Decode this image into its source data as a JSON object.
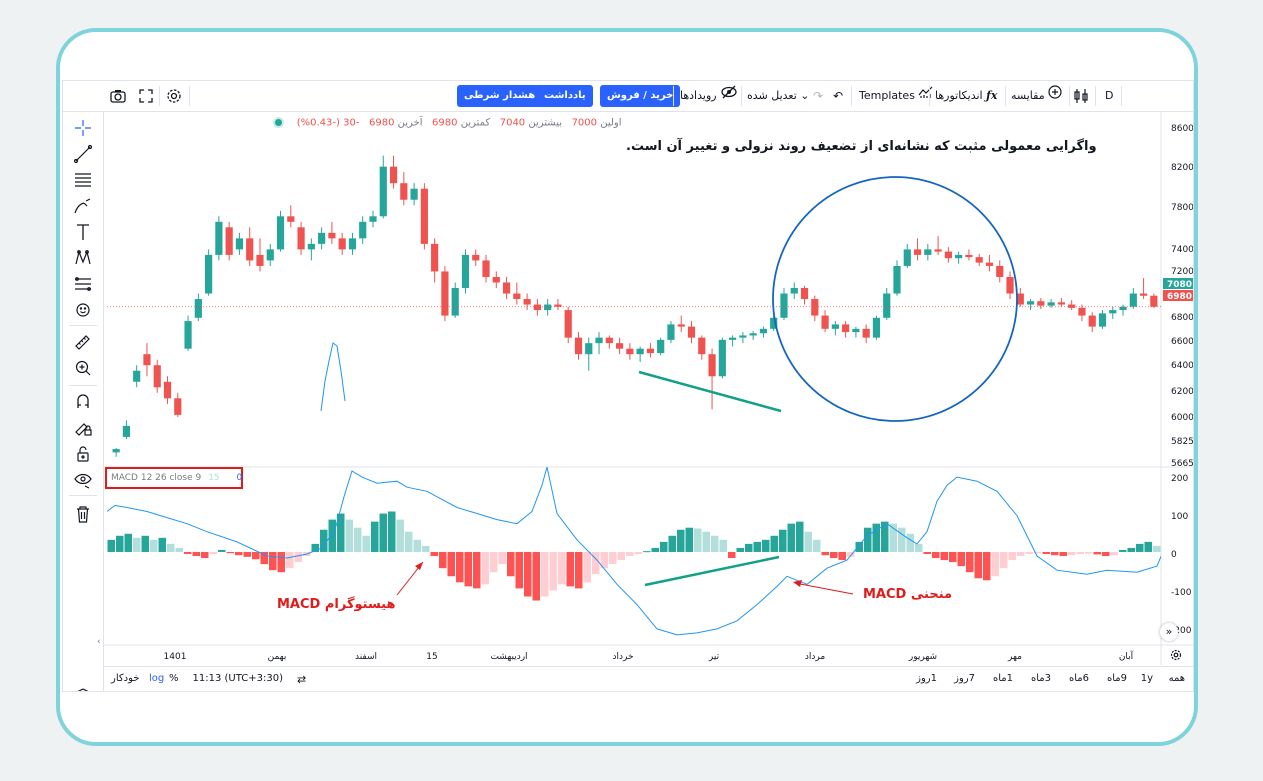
{
  "toolbar": {
    "interval": "D",
    "compare": "مقایسه",
    "indicators": "اندیکاتورها",
    "templates": "Templates",
    "adjusted": "تعدیل شده",
    "events": "رویدادها",
    "buy_sell": "خرید / فروش",
    "note": "یادداشت",
    "alert": "هشدار شرطی"
  },
  "legend": {
    "change": "-30 (-0.43%)",
    "last_value": "6980",
    "last_label": "آخرین",
    "low_value": "6980",
    "low_label": "کمترین",
    "high_value": "7040",
    "high_label": "بیشترین",
    "open_value": "7000",
    "open_label": "اولین"
  },
  "macd_label": {
    "name": "MACD 12 26 close 9",
    "v1": "15",
    "v2": "0"
  },
  "price_axis": [
    "8600",
    "8200",
    "7800",
    "7400",
    "7200",
    "6800",
    "6600",
    "6400",
    "6200",
    "6000",
    "5825",
    "5665"
  ],
  "price_tags": {
    "blue": "7080",
    "red": "6980"
  },
  "macd_axis": [
    "200",
    "100",
    "0",
    "-100",
    "-200"
  ],
  "time_axis": [
    {
      "label": "1401",
      "x": 112
    },
    {
      "label": "بهمن",
      "x": 214
    },
    {
      "label": "اسفند",
      "x": 303
    },
    {
      "label": "15",
      "x": 369
    },
    {
      "label": "اردیبهشت",
      "x": 446
    },
    {
      "label": "خرداد",
      "x": 560
    },
    {
      "label": "تیر",
      "x": 651
    },
    {
      "label": "مرداد",
      "x": 752
    },
    {
      "label": "شهریور",
      "x": 860
    },
    {
      "label": "مهر",
      "x": 952
    },
    {
      "label": "آبان",
      "x": 1063
    }
  ],
  "bottom": {
    "ranges": [
      "همه",
      "1y",
      "9ماه",
      "6ماه",
      "3ماه",
      "1ماه",
      "7روز",
      "1روز"
    ],
    "time": "11:13 (UTC+3:30)",
    "percent": "%",
    "log": "log",
    "auto": "خودکار"
  },
  "annotations": {
    "headline": "واگرایی معمولی مثبت که نشانه‌ای از تضعیف روند نزولی و تغییر آن است.",
    "histogram": "هیستوگرام MACD",
    "curve": "منحنی MACD"
  },
  "colors": {
    "up": "#26a69a",
    "down": "#ef5350",
    "accent": "#2962ff",
    "annotation": "#e01b1b",
    "circle": "#1565c0",
    "divergence": "#12a087"
  },
  "chart_data": {
    "type": "candlestick",
    "title": "",
    "price_ylim": [
      5600,
      8700
    ],
    "candles": [
      [
        5660,
        5700,
        5620,
        5690
      ],
      [
        5800,
        5950,
        5780,
        5900
      ],
      [
        6300,
        6450,
        6250,
        6400
      ],
      [
        6550,
        6650,
        6350,
        6450
      ],
      [
        6450,
        6500,
        6200,
        6250
      ],
      [
        6300,
        6350,
        6100,
        6150
      ],
      [
        6150,
        6200,
        5980,
        6000
      ],
      [
        6600,
        6900,
        6580,
        6850
      ],
      [
        6880,
        7100,
        6850,
        7050
      ],
      [
        7100,
        7500,
        7080,
        7450
      ],
      [
        7450,
        7800,
        7400,
        7750
      ],
      [
        7700,
        7750,
        7400,
        7450
      ],
      [
        7500,
        7650,
        7450,
        7600
      ],
      [
        7600,
        7700,
        7350,
        7400
      ],
      [
        7450,
        7600,
        7300,
        7350
      ],
      [
        7400,
        7550,
        7350,
        7500
      ],
      [
        7500,
        7850,
        7480,
        7800
      ],
      [
        7800,
        7900,
        7700,
        7750
      ],
      [
        7700,
        7750,
        7450,
        7500
      ],
      [
        7500,
        7600,
        7400,
        7550
      ],
      [
        7550,
        7700,
        7500,
        7650
      ],
      [
        7650,
        7750,
        7550,
        7600
      ],
      [
        7600,
        7650,
        7450,
        7500
      ],
      [
        7500,
        7650,
        7450,
        7600
      ],
      [
        7600,
        7800,
        7550,
        7750
      ],
      [
        7750,
        7850,
        7700,
        7800
      ],
      [
        7800,
        8350,
        7780,
        8250
      ],
      [
        8250,
        8350,
        8050,
        8100
      ],
      [
        8100,
        8200,
        7900,
        7950
      ],
      [
        7950,
        8100,
        7900,
        8050
      ],
      [
        8050,
        8100,
        7500,
        7550
      ],
      [
        7550,
        7600,
        7200,
        7300
      ],
      [
        7300,
        7350,
        6850,
        6900
      ],
      [
        6900,
        7200,
        6880,
        7150
      ],
      [
        7150,
        7500,
        7100,
        7450
      ],
      [
        7450,
        7500,
        7350,
        7400
      ],
      [
        7400,
        7450,
        7200,
        7250
      ],
      [
        7250,
        7300,
        7150,
        7200
      ],
      [
        7200,
        7250,
        7050,
        7100
      ],
      [
        7100,
        7200,
        7000,
        7050
      ],
      [
        7050,
        7100,
        6950,
        7000
      ],
      [
        7000,
        7050,
        6900,
        6950
      ],
      [
        6950,
        7050,
        6900,
        7000
      ],
      [
        7000,
        7050,
        6950,
        6980
      ],
      [
        6950,
        6980,
        6650,
        6700
      ],
      [
        6700,
        6750,
        6500,
        6550
      ],
      [
        6550,
        6700,
        6400,
        6650
      ],
      [
        6650,
        6750,
        6550,
        6700
      ],
      [
        6700,
        6720,
        6600,
        6650
      ],
      [
        6650,
        6700,
        6550,
        6600
      ],
      [
        6600,
        6650,
        6500,
        6550
      ],
      [
        6550,
        6620,
        6480,
        6600
      ],
      [
        6600,
        6650,
        6520,
        6560
      ],
      [
        6560,
        6700,
        6540,
        6680
      ],
      [
        6680,
        6850,
        6650,
        6820
      ],
      [
        6820,
        6900,
        6750,
        6800
      ],
      [
        6800,
        6850,
        6650,
        6700
      ],
      [
        6700,
        6720,
        6500,
        6550
      ],
      [
        6550,
        6600,
        6050,
        6350
      ],
      [
        6350,
        6700,
        6330,
        6680
      ],
      [
        6680,
        6720,
        6620,
        6700
      ],
      [
        6700,
        6750,
        6650,
        6720
      ],
      [
        6720,
        6760,
        6680,
        6740
      ],
      [
        6740,
        6800,
        6700,
        6780
      ],
      [
        6780,
        6900,
        6760,
        6880
      ],
      [
        6880,
        7150,
        6860,
        7100
      ],
      [
        7100,
        7200,
        7050,
        7150
      ],
      [
        7150,
        7170,
        7000,
        7050
      ],
      [
        7050,
        7080,
        6850,
        6900
      ],
      [
        6900,
        6950,
        6750,
        6780
      ],
      [
        6780,
        6850,
        6720,
        6820
      ],
      [
        6820,
        6850,
        6700,
        6750
      ],
      [
        6750,
        6800,
        6700,
        6780
      ],
      [
        6780,
        6820,
        6650,
        6700
      ],
      [
        6700,
        6900,
        6680,
        6880
      ],
      [
        6880,
        7150,
        6860,
        7100
      ],
      [
        7100,
        7400,
        7080,
        7350
      ],
      [
        7350,
        7550,
        7330,
        7500
      ],
      [
        7500,
        7600,
        7400,
        7450
      ],
      [
        7450,
        7550,
        7400,
        7500
      ],
      [
        7500,
        7620,
        7450,
        7480
      ],
      [
        7480,
        7520,
        7380,
        7420
      ],
      [
        7420,
        7480,
        7370,
        7450
      ],
      [
        7450,
        7500,
        7400,
        7430
      ],
      [
        7430,
        7460,
        7350,
        7380
      ],
      [
        7380,
        7450,
        7300,
        7350
      ],
      [
        7350,
        7400,
        7200,
        7250
      ],
      [
        7250,
        7300,
        7050,
        7100
      ],
      [
        7100,
        7150,
        6980,
        7000
      ],
      [
        7000,
        7050,
        6950,
        7030
      ],
      [
        7030,
        7060,
        6960,
        6990
      ],
      [
        6990,
        7050,
        6970,
        7020
      ],
      [
        7020,
        7060,
        6980,
        7000
      ],
      [
        7000,
        7040,
        6950,
        6970
      ],
      [
        6970,
        7000,
        6850,
        6900
      ],
      [
        6900,
        6930,
        6750,
        6800
      ],
      [
        6800,
        6950,
        6780,
        6920
      ],
      [
        6920,
        6980,
        6870,
        6950
      ],
      [
        6950,
        7000,
        6900,
        6980
      ],
      [
        6980,
        7150,
        6960,
        7100
      ],
      [
        7100,
        7240,
        7050,
        7080
      ],
      [
        7080,
        7100,
        6970,
        6980
      ]
    ],
    "macd_ylim": [
      -220,
      210
    ],
    "histogram": [
      30,
      40,
      45,
      35,
      40,
      30,
      35,
      20,
      10,
      -5,
      -10,
      -15,
      -5,
      5,
      -3,
      -8,
      -12,
      -18,
      -30,
      -45,
      -50,
      -40,
      -25,
      -10,
      20,
      55,
      80,
      95,
      80,
      60,
      40,
      75,
      95,
      100,
      80,
      50,
      30,
      15,
      -10,
      -40,
      -60,
      -75,
      -85,
      -90,
      -80,
      -50,
      -30,
      -60,
      -90,
      -110,
      -120,
      -110,
      -95,
      -80,
      -85,
      -90,
      -75,
      -55,
      -40,
      -30,
      -20,
      -10,
      -5,
      2,
      10,
      25,
      40,
      55,
      60,
      58,
      50,
      40,
      30,
      -15,
      10,
      20,
      25,
      30,
      40,
      55,
      70,
      75,
      50,
      30,
      -8,
      -15,
      -20,
      -12,
      25,
      60,
      70,
      75,
      70,
      60,
      45,
      20,
      -5,
      -15,
      -20,
      -25,
      -35,
      -50,
      -65,
      -70,
      -60,
      -40,
      -20,
      -10,
      -5,
      -3,
      -5,
      -8,
      -10,
      -8,
      -5,
      -4,
      -6,
      -10,
      -8,
      5,
      10,
      20,
      25,
      15
    ],
    "macd_line": [
      [
        0,
        100
      ],
      [
        8,
        115
      ],
      [
        20,
        110
      ],
      [
        40,
        100
      ],
      [
        60,
        85
      ],
      [
        80,
        70
      ],
      [
        100,
        50
      ],
      [
        130,
        25
      ],
      [
        160,
        -10
      ],
      [
        180,
        -15
      ],
      [
        200,
        -5
      ],
      [
        215,
        10
      ],
      [
        228,
        55
      ],
      [
        238,
        145
      ],
      [
        245,
        200
      ],
      [
        255,
        185
      ],
      [
        270,
        170
      ],
      [
        290,
        175
      ],
      [
        300,
        160
      ],
      [
        320,
        150
      ],
      [
        335,
        130
      ],
      [
        350,
        110
      ],
      [
        370,
        95
      ],
      [
        390,
        80
      ],
      [
        410,
        70
      ],
      [
        425,
        100
      ],
      [
        435,
        165
      ],
      [
        440,
        210
      ],
      [
        450,
        95
      ],
      [
        470,
        30
      ],
      [
        490,
        -20
      ],
      [
        510,
        -80
      ],
      [
        530,
        -130
      ],
      [
        550,
        -190
      ],
      [
        570,
        -205
      ],
      [
        590,
        -200
      ],
      [
        610,
        -190
      ],
      [
        630,
        -170
      ],
      [
        650,
        -130
      ],
      [
        670,
        -85
      ],
      [
        680,
        -60
      ],
      [
        690,
        -70
      ],
      [
        700,
        -80
      ],
      [
        710,
        -60
      ],
      [
        720,
        -40
      ],
      [
        740,
        -20
      ],
      [
        760,
        40
      ],
      [
        780,
        70
      ],
      [
        800,
        35
      ],
      [
        810,
        20
      ],
      [
        820,
        50
      ],
      [
        830,
        125
      ],
      [
        840,
        165
      ],
      [
        850,
        185
      ],
      [
        870,
        175
      ],
      [
        890,
        150
      ],
      [
        910,
        90
      ],
      [
        930,
        -10
      ],
      [
        950,
        -45
      ],
      [
        980,
        -55
      ],
      [
        1000,
        -45
      ],
      [
        1030,
        -50
      ],
      [
        1050,
        -35
      ],
      [
        1055,
        -5
      ]
    ]
  }
}
